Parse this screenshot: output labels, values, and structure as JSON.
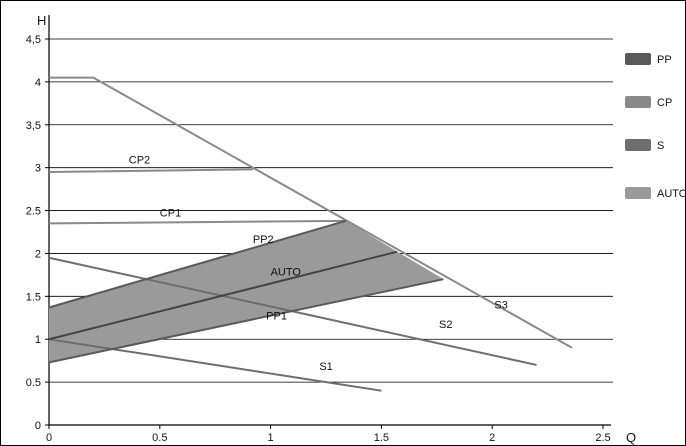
{
  "chart_data": {
    "type": "line",
    "title": "",
    "xlabel": "Q",
    "ylabel": "H",
    "xlim": [
      0,
      2.5
    ],
    "ylim": [
      0,
      4.5
    ],
    "x_ticks": [
      "0",
      "0.5",
      "1",
      "1.5",
      "2",
      "2.5"
    ],
    "y_ticks": [
      "0",
      "0.5",
      "1",
      "1.5",
      "2",
      "2.5",
      "3",
      "3,5",
      "4",
      "4,5"
    ],
    "y_tick_values": [
      0,
      0.5,
      1,
      1.5,
      2,
      2.5,
      3,
      3.5,
      4,
      4.5
    ],
    "grid": "horizontal",
    "legend_position": "right",
    "legend": [
      {
        "label": "PP",
        "color": "#5a5a5a"
      },
      {
        "label": "CP",
        "color": "#8a8a8a"
      },
      {
        "label": "S",
        "color": "#6e6e6e"
      },
      {
        "label": "AUTO",
        "color": "#999999"
      }
    ],
    "auto_region": {
      "label": "AUTO",
      "color": "#9a9a9a",
      "points": [
        [
          0,
          1.37
        ],
        [
          1.34,
          2.38
        ],
        [
          1.78,
          1.7
        ],
        [
          0,
          0.73
        ]
      ]
    },
    "series": [
      {
        "name": "S3",
        "x": [
          0,
          0.2,
          2.36
        ],
        "y": [
          4.05,
          4.05,
          0.9
        ],
        "color": "#8a8a8a"
      },
      {
        "name": "S2",
        "x": [
          0,
          2.2
        ],
        "y": [
          1.95,
          0.7
        ],
        "color": "#6e6e6e"
      },
      {
        "name": "S1",
        "x": [
          0,
          1.5
        ],
        "y": [
          1.0,
          0.4
        ],
        "color": "#6e6e6e"
      },
      {
        "name": "CP2",
        "x": [
          0,
          0.92
        ],
        "y": [
          2.95,
          2.98
        ],
        "color": "#8a8a8a"
      },
      {
        "name": "CP1",
        "x": [
          0,
          1.34
        ],
        "y": [
          2.35,
          2.38
        ],
        "color": "#8a8a8a"
      },
      {
        "name": "PP2",
        "x": [
          0,
          1.34
        ],
        "y": [
          1.37,
          2.38
        ],
        "color": "#5a5a5a"
      },
      {
        "name": "PP1",
        "x": [
          0,
          1.78
        ],
        "y": [
          0.73,
          1.7
        ],
        "color": "#5a5a5a"
      },
      {
        "name": "AUTO",
        "x": [
          0,
          1.57
        ],
        "y": [
          1.0,
          2.02
        ],
        "color": "#444444"
      }
    ],
    "curve_labels": [
      {
        "text": "CP2",
        "x": 0.36,
        "y": 3.05
      },
      {
        "text": "CP1",
        "x": 0.5,
        "y": 2.43
      },
      {
        "text": "PP2",
        "x": 0.92,
        "y": 2.12
      },
      {
        "text": "AUTO",
        "x": 1.0,
        "y": 1.74
      },
      {
        "text": "PP1",
        "x": 0.98,
        "y": 1.23
      },
      {
        "text": "S3",
        "x": 2.01,
        "y": 1.36
      },
      {
        "text": "S2",
        "x": 1.76,
        "y": 1.13
      },
      {
        "text": "S1",
        "x": 1.22,
        "y": 0.64
      }
    ]
  }
}
